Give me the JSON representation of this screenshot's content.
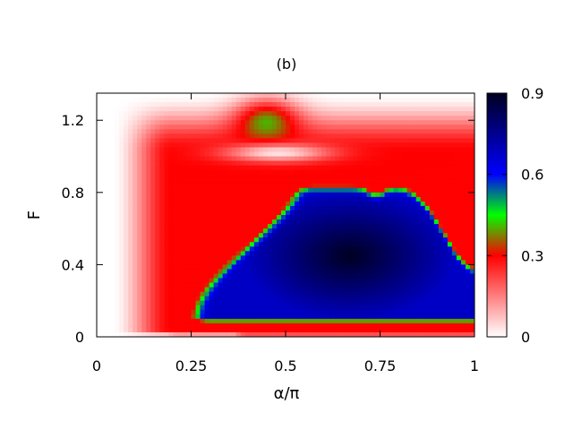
{
  "chart_data": {
    "type": "heatmap",
    "title": "(b)",
    "xlabel": "α/π",
    "ylabel": "F",
    "xlim": [
      0,
      1
    ],
    "ylim": [
      0,
      1.35
    ],
    "x_ticks": [
      {
        "value": 0,
        "label": "0"
      },
      {
        "value": 0.25,
        "label": "0.25"
      },
      {
        "value": 0.5,
        "label": "0.5"
      },
      {
        "value": 0.75,
        "label": "0.75"
      },
      {
        "value": 1,
        "label": "1"
      }
    ],
    "y_ticks": [
      {
        "value": 0,
        "label": "0"
      },
      {
        "value": 0.4,
        "label": "0.4"
      },
      {
        "value": 0.8,
        "label": "0.8"
      },
      {
        "value": 1.2,
        "label": "1.2"
      }
    ],
    "colorbar": {
      "range": [
        0,
        0.9
      ],
      "ticks": [
        {
          "value": 0,
          "label": "0"
        },
        {
          "value": 0.3,
          "label": "0.3"
        },
        {
          "value": 0.6,
          "label": "0.6"
        },
        {
          "value": 0.9,
          "label": "0.9"
        }
      ],
      "colors": [
        "#ffffff",
        "#ff0000",
        "#00ff00",
        "#0000ff",
        "#000020"
      ]
    },
    "features": {
      "peak": {
        "x": 0.67,
        "y": 0.45,
        "value": 0.9
      },
      "high_region": {
        "x_range": [
          0.4,
          1.0
        ],
        "y_range": [
          0.07,
          0.88
        ],
        "value": 0.65
      },
      "low_region": {
        "x_range": [
          0.1,
          0.45
        ],
        "y_range": [
          0.0,
          1.1
        ],
        "value": 0.25
      },
      "zero_line": {
        "x": 0.45,
        "y_range": [
          0.95,
          1.05
        ],
        "value": 0.0
      }
    },
    "grid": false
  }
}
